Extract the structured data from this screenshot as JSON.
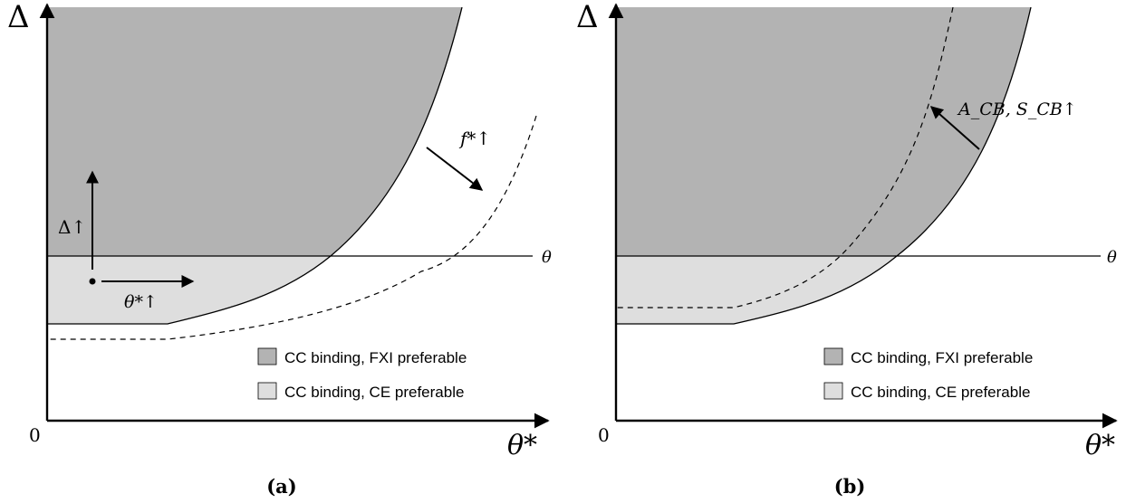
{
  "colors": {
    "dark_region": "#b3b3b3",
    "light_region": "#dedede",
    "stroke": "#000000"
  },
  "panel_a": {
    "caption": "(a)",
    "y_axis_label": "Δ",
    "x_axis_label": "θ*",
    "origin_label": "0",
    "theta_line_label": "θ",
    "delta_up_label": "Δ↑",
    "theta_star_up_label": "θ*↑",
    "shift_label": "f*↑",
    "legend": [
      {
        "label": "CC binding, FXI preferable",
        "color": "#b3b3b3"
      },
      {
        "label": "CC binding, CE preferable",
        "color": "#dedede"
      }
    ]
  },
  "panel_b": {
    "caption": "(b)",
    "y_axis_label": "Δ",
    "x_axis_label": "θ*",
    "origin_label": "0",
    "theta_line_label": "θ",
    "shift_label": "A_CB, S_CB↑",
    "legend": [
      {
        "label": "CC binding, FXI preferable",
        "color": "#b3b3b3"
      },
      {
        "label": "CC binding, CE preferable",
        "color": "#dedede"
      }
    ]
  }
}
